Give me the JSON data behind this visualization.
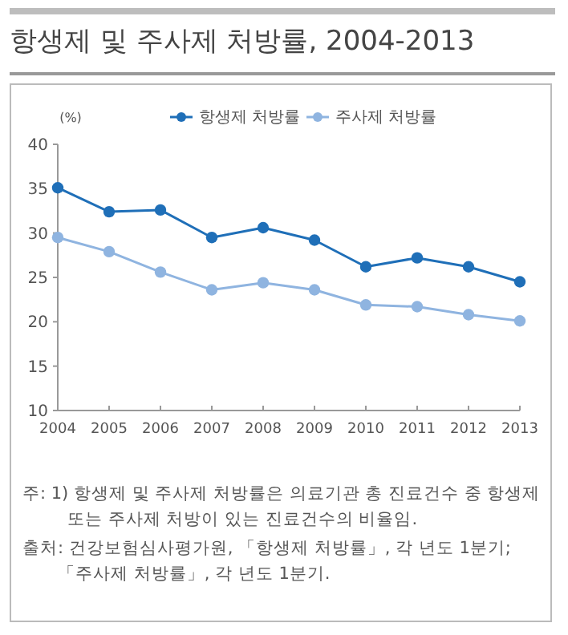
{
  "chart_data": {
    "type": "line",
    "title": "항생제 및 주사제 처방률, 2004-2013",
    "ylabel": "(%)",
    "categories": [
      "2004",
      "2005",
      "2006",
      "2007",
      "2008",
      "2009",
      "2010",
      "2011",
      "2012",
      "2013"
    ],
    "series": [
      {
        "name": "항생제 처방률",
        "color": "#1f6fb8",
        "values": [
          35.1,
          32.4,
          32.6,
          29.5,
          30.6,
          29.2,
          26.2,
          27.2,
          26.2,
          24.5
        ]
      },
      {
        "name": "주사제 처방률",
        "color": "#8fb4e0",
        "values": [
          29.5,
          27.9,
          25.6,
          23.6,
          24.4,
          23.6,
          21.9,
          21.7,
          20.8,
          20.1
        ]
      }
    ],
    "ylim": [
      10,
      40
    ],
    "yticks": [
      10,
      15,
      20,
      25,
      30,
      35,
      40
    ],
    "grid": false,
    "legend": "top",
    "marker": "circle",
    "annotations": [
      "주: 1) 항생제 및 주사제 처방률은 의료기관 총 진료건수 중 항생제 또는 주사제 처방이 있는 진료건수의 비율임.",
      "출처: 건강보험심사평가원, 「항생제 처방률」, 각 년도 1분기; 「주사제 처방률」, 각 년도 1분기."
    ]
  }
}
